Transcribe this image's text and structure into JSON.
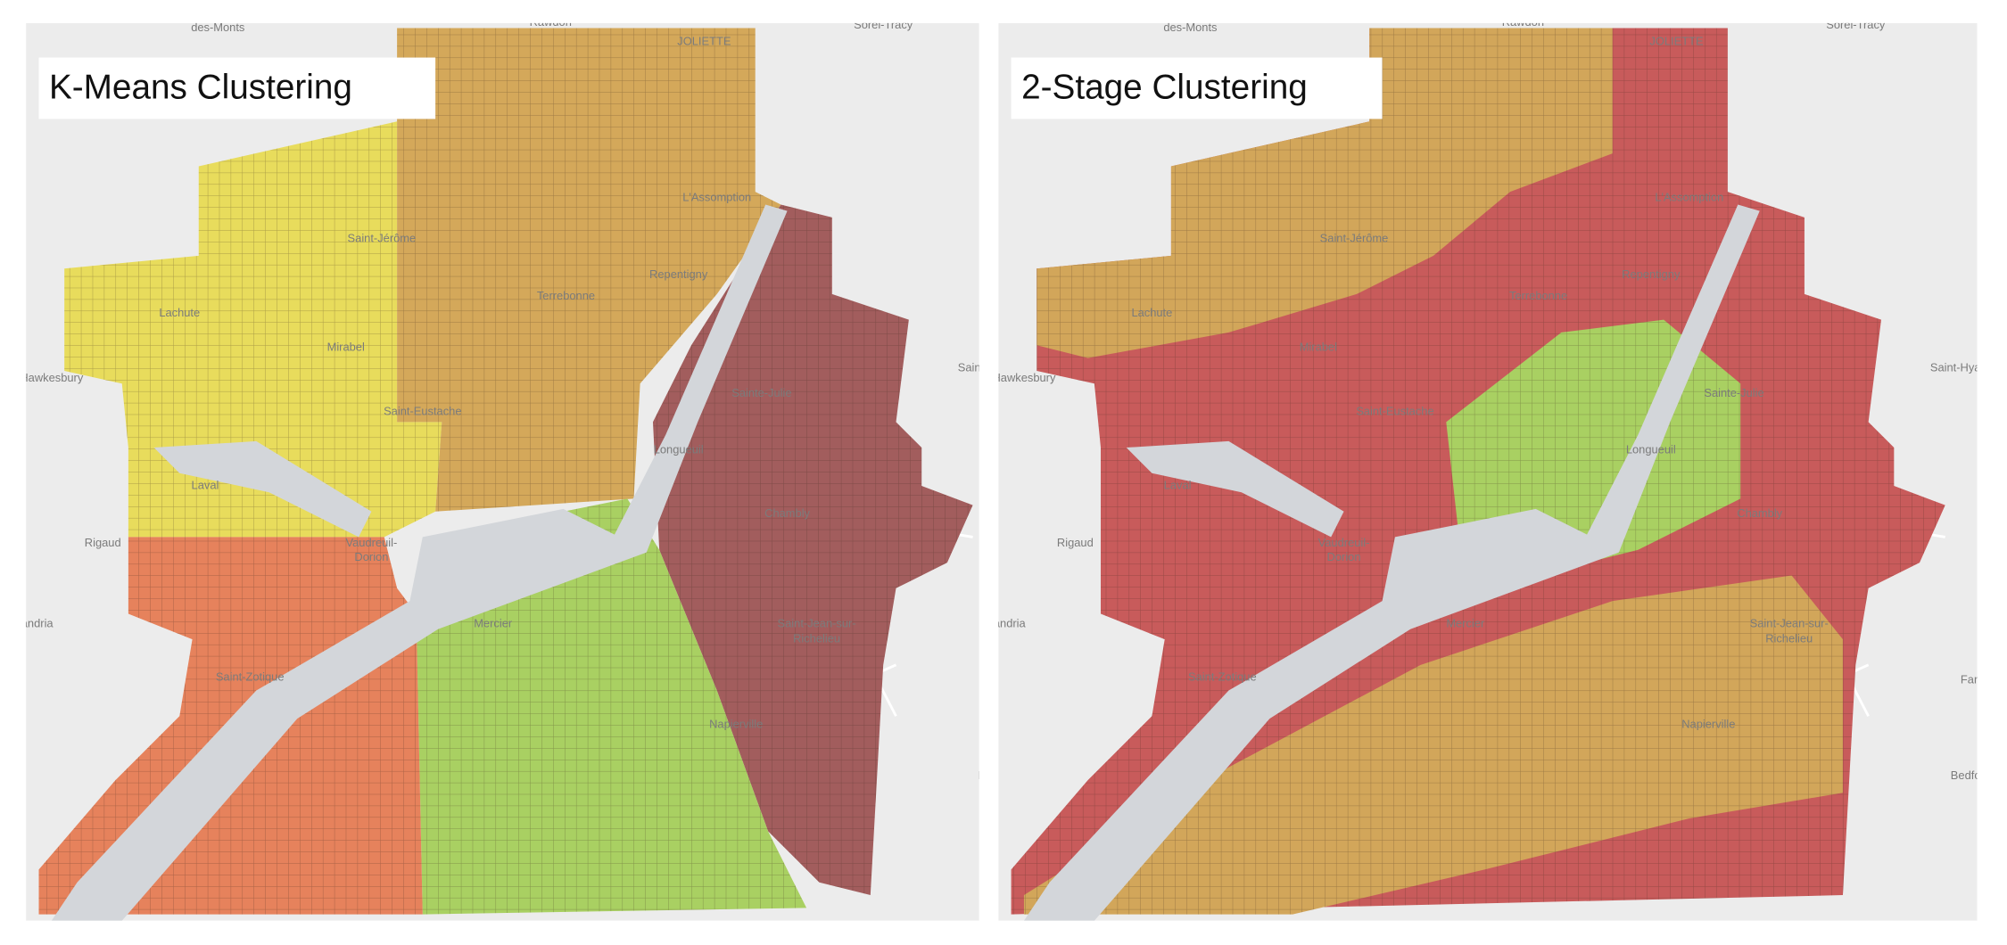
{
  "panels": [
    {
      "title": "K-Means Clustering"
    },
    {
      "title": "2-Stage Clustering"
    }
  ],
  "place_labels": [
    "des-Monts",
    "Rawdon",
    "JOLIETTE",
    "Sorel-Tracy",
    "Saint-Jérôme",
    "Mirabel",
    "Terrebonne",
    "L'Assomption",
    "Repentigny",
    "Laval",
    "Saint-Eustache",
    "Sainte-Julie",
    "Longueuil",
    "Chambly",
    "Saint-Jean-sur-",
    "Richelieu",
    "Vaudreuil-",
    "Dorion",
    "Mercier",
    "Saint-Zotique",
    "Napierville",
    "Hawkesbury",
    "Alexandria",
    "Saint-Hyacinthe",
    "Farnham",
    "Bedford",
    "Lachute",
    "Rigaud"
  ]
}
